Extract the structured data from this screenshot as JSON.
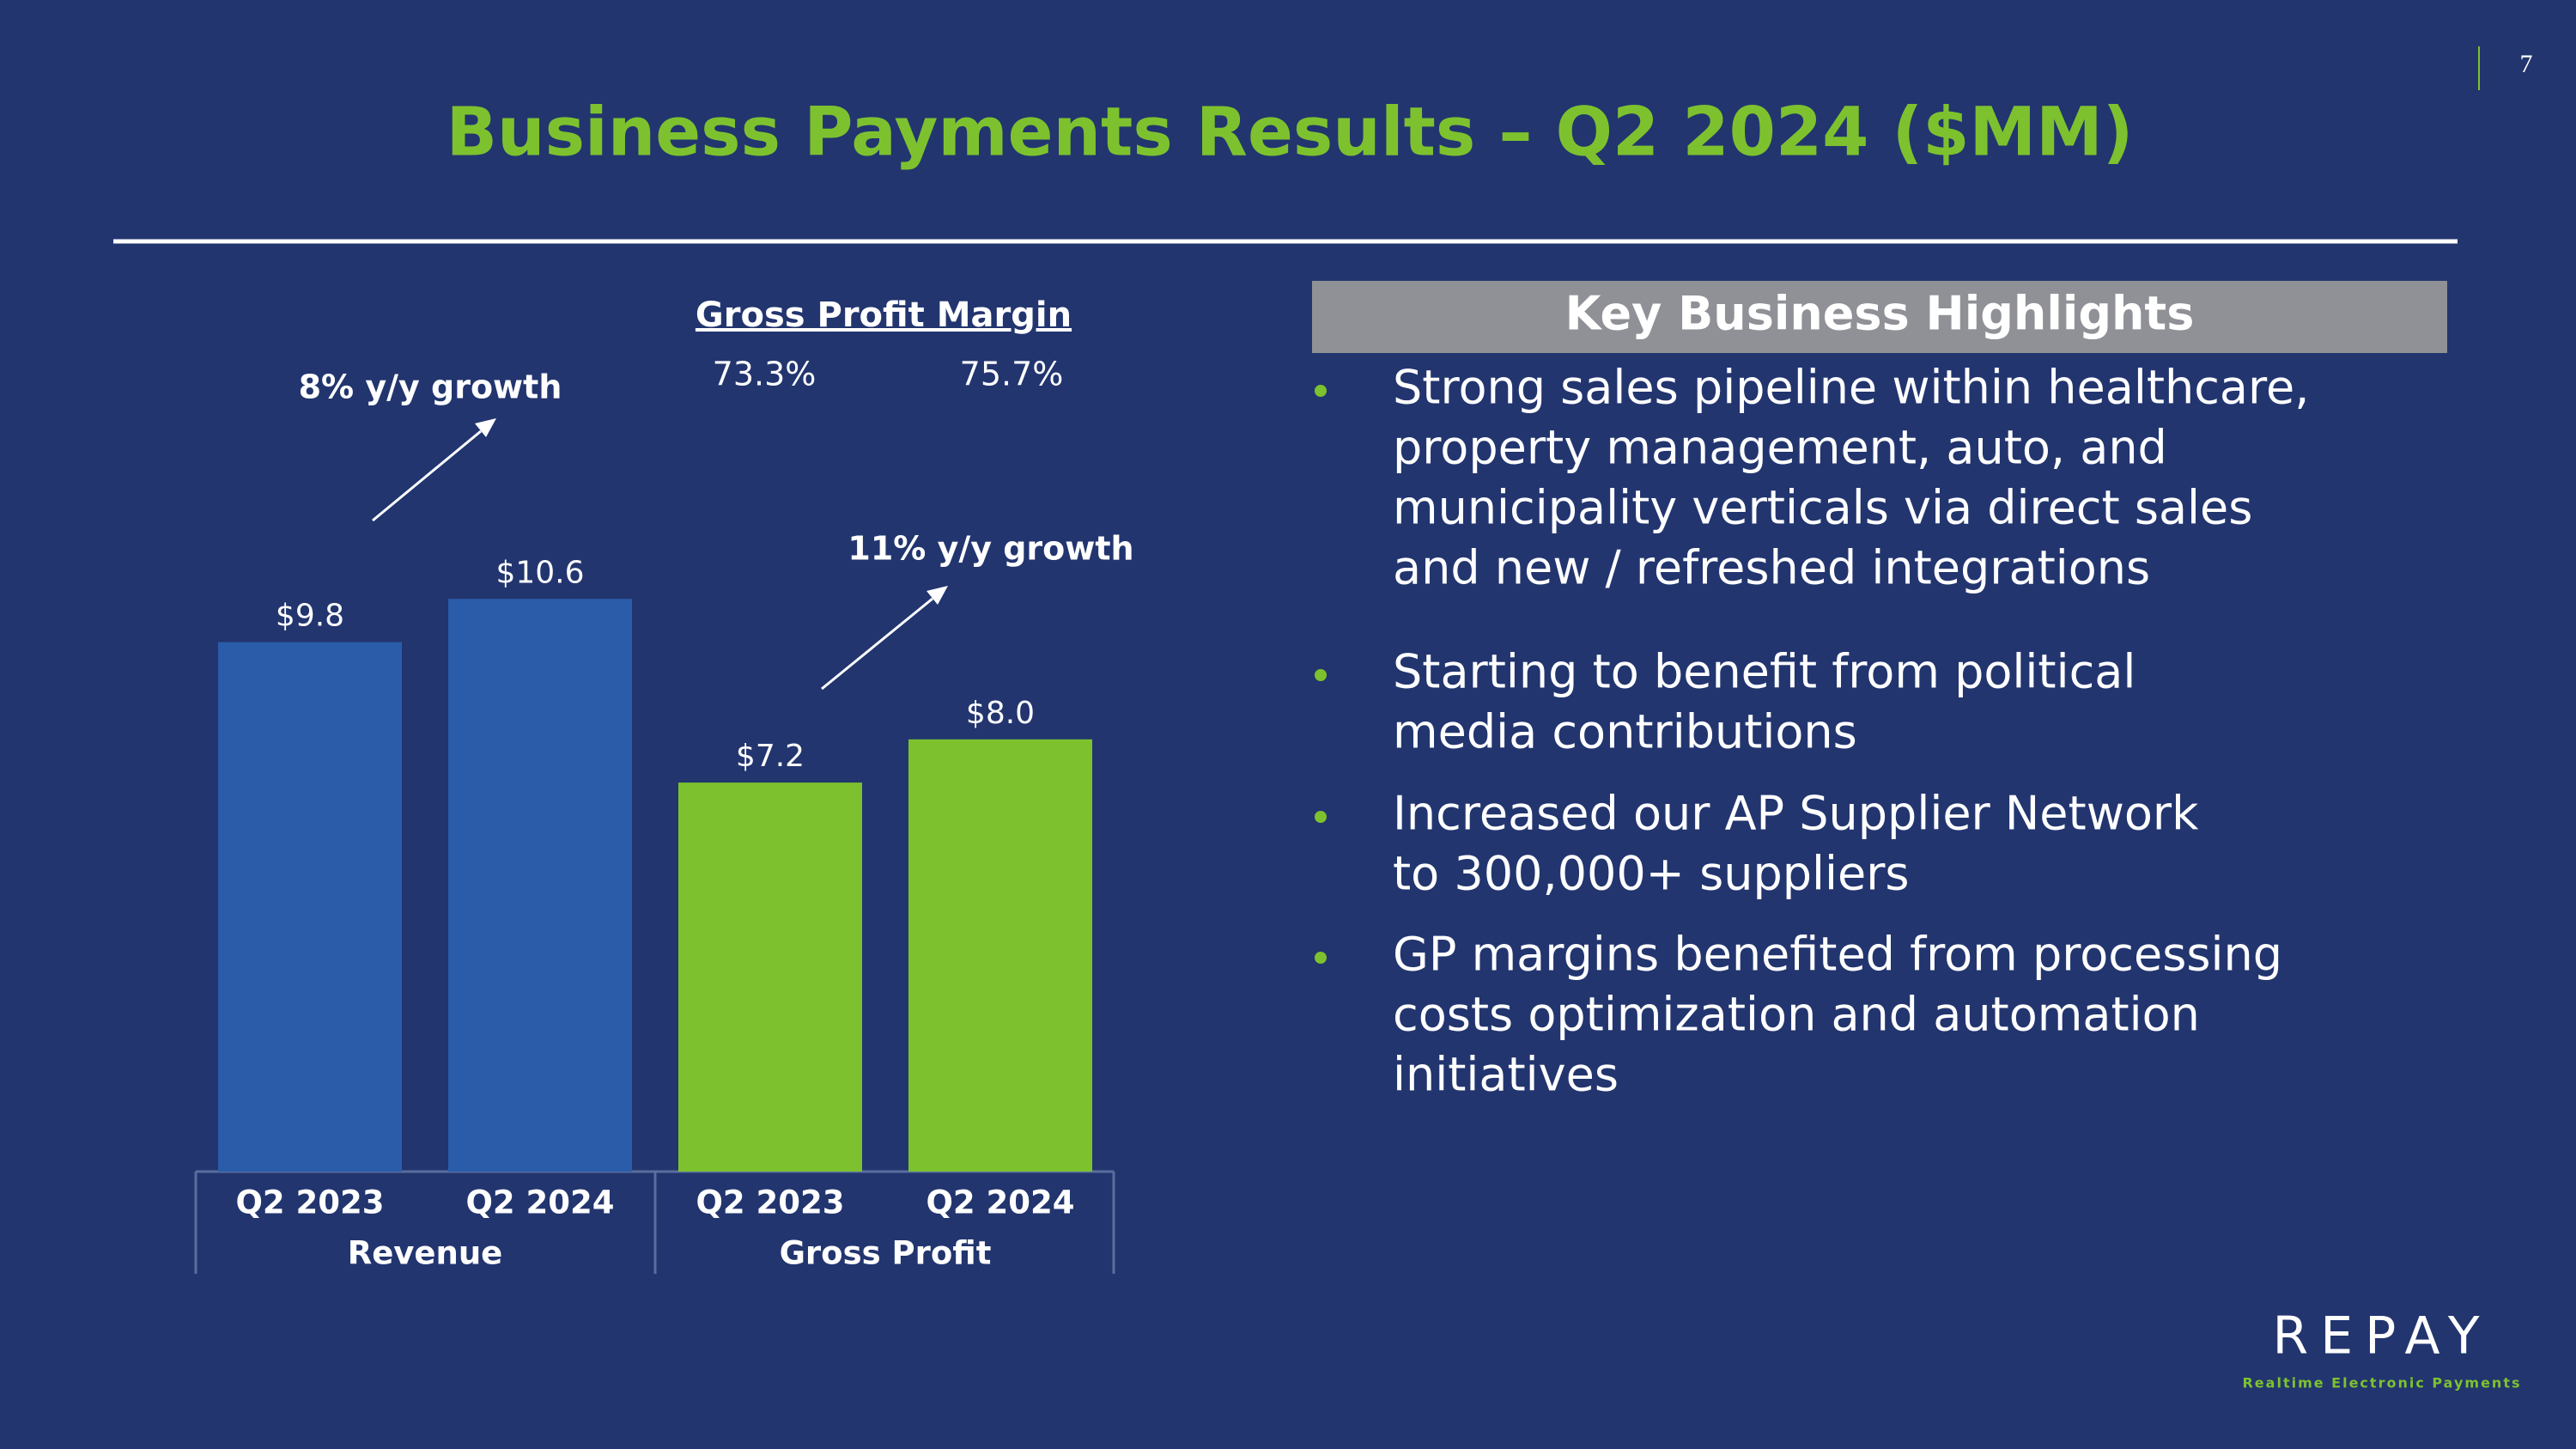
{
  "page_number": "7",
  "title": "Business Payments Results – Q2 2024 ($MM)",
  "chart_data": {
    "type": "bar",
    "categories": [
      "Q2 2023",
      "Q2 2024"
    ],
    "series": [
      {
        "name": "Revenue",
        "color": "#2a5caa",
        "values": [
          9.8,
          10.6
        ],
        "value_labels": [
          "$9.8",
          "$10.6"
        ]
      },
      {
        "name": "Gross Profit",
        "color": "#7dc22e",
        "values": [
          7.2,
          8.0
        ],
        "value_labels": [
          "$7.2",
          "$8.0"
        ]
      }
    ],
    "annotations": [
      "8% y/y growth",
      "11% y/y growth"
    ],
    "margin": {
      "title": "Gross Profit Margin",
      "labels": [
        "73.3%",
        "75.7%"
      ]
    }
  },
  "highlights": {
    "title": "Key Business Highlights",
    "bullets": [
      [
        "Strong sales pipeline within healthcare,",
        "property management, auto, and",
        "municipality verticals via direct sales",
        "and new / refreshed integrations"
      ],
      [
        "Starting to benefit from political",
        "media contributions"
      ],
      [
        "Increased our AP Supplier Network",
        "to 300,000+ suppliers"
      ],
      [
        "GP margins benefited from processing",
        "costs optimization and automation",
        "initiatives"
      ]
    ]
  },
  "logo": {
    "name": "REPAY",
    "tagline": "Realtime Electronic Payments"
  }
}
